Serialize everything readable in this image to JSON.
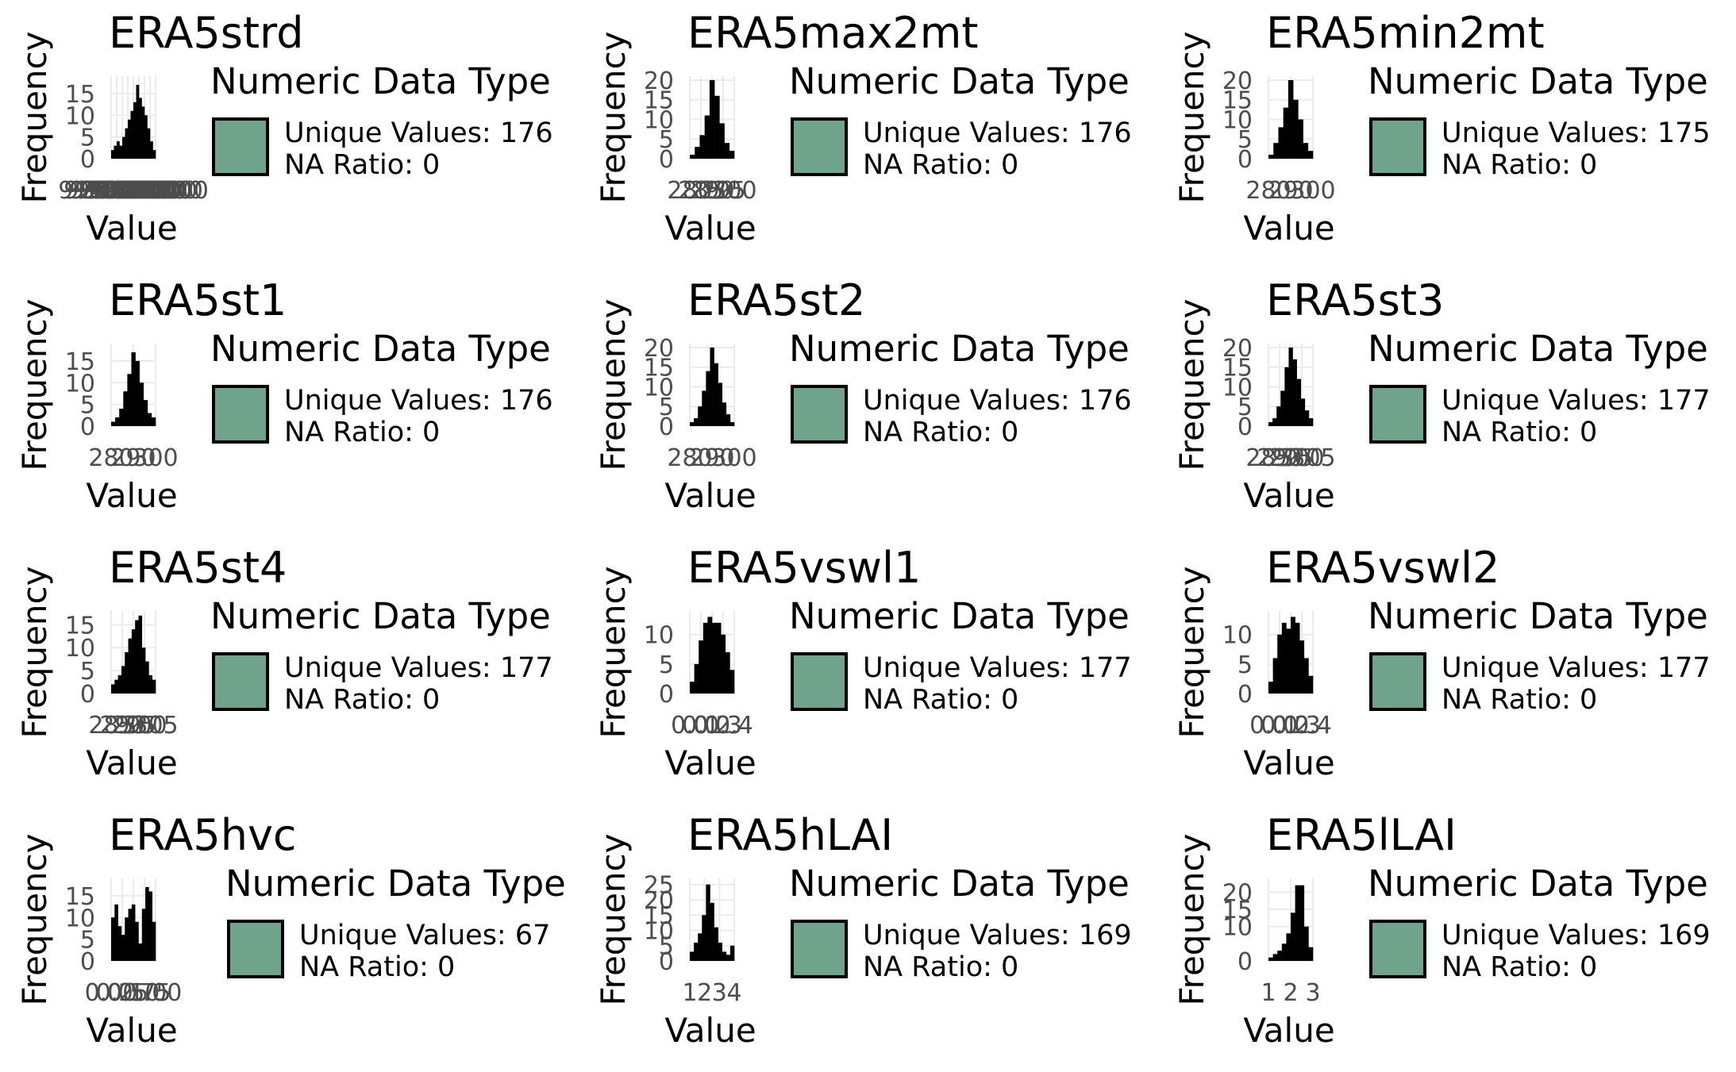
{
  "legend": {
    "title": "Numeric Data Type",
    "unique_prefix": "Unique Values: ",
    "na_prefix": "NA Ratio: "
  },
  "axis": {
    "xlabel": "Value",
    "ylabel": "Frequency"
  },
  "colors": {
    "legend_fill": "#6fa38b",
    "bars": "#000000",
    "grid": "#ebebeb",
    "tick_text": "#4d4d4d"
  },
  "chart_data": [
    {
      "type": "bar",
      "title": "ERA5strd",
      "unique_values": 176,
      "na_ratio": 0,
      "yticks": [
        "0",
        "5",
        "10",
        "15"
      ],
      "ylim": [
        0,
        19
      ],
      "xticks": [
        "9100000",
        "9200000",
        "9300000",
        "9400000",
        "9500000",
        "9600000",
        "9700000",
        "9800000",
        "9900000"
      ],
      "values": [
        2,
        3,
        4,
        3,
        5,
        7,
        9,
        11,
        13,
        17,
        14,
        12,
        10,
        7,
        4,
        2
      ]
    },
    {
      "type": "bar",
      "title": "ERA5max2mt",
      "unique_values": 176,
      "na_ratio": 0,
      "yticks": [
        "0",
        "5",
        "10",
        "15",
        "20"
      ],
      "ylim": [
        0,
        21
      ],
      "xticks": [
        "280",
        "285",
        "290",
        "295",
        "300"
      ],
      "values": [
        1,
        3,
        6,
        11,
        20,
        16,
        9,
        4,
        2
      ]
    },
    {
      "type": "bar",
      "title": "ERA5min2mt",
      "unique_values": 175,
      "na_ratio": 0,
      "yticks": [
        "0",
        "5",
        "10",
        "15",
        "20"
      ],
      "ylim": [
        0,
        21
      ],
      "xticks": [
        "280",
        "290",
        "300"
      ],
      "values": [
        1,
        4,
        8,
        13,
        20,
        15,
        10,
        4,
        2
      ]
    },
    {
      "type": "bar",
      "title": "ERA5st1",
      "unique_values": 176,
      "na_ratio": 0,
      "yticks": [
        "0",
        "5",
        "10",
        "15"
      ],
      "ylim": [
        0,
        19
      ],
      "xticks": [
        "280",
        "290",
        "300"
      ],
      "values": [
        1,
        2,
        4,
        8,
        12,
        17,
        15,
        10,
        6,
        3,
        2
      ]
    },
    {
      "type": "bar",
      "title": "ERA5st2",
      "unique_values": 176,
      "na_ratio": 0,
      "yticks": [
        "0",
        "5",
        "10",
        "15",
        "20"
      ],
      "ylim": [
        0,
        21
      ],
      "xticks": [
        "280",
        "290",
        "300"
      ],
      "values": [
        1,
        2,
        5,
        9,
        14,
        20,
        16,
        11,
        6,
        3,
        1
      ]
    },
    {
      "type": "bar",
      "title": "ERA5st3",
      "unique_values": 177,
      "na_ratio": 0,
      "yticks": [
        "0",
        "5",
        "10",
        "15",
        "20"
      ],
      "ylim": [
        0,
        21
      ],
      "xticks": [
        "285",
        "290",
        "295",
        "300",
        "305"
      ],
      "values": [
        1,
        2,
        5,
        9,
        15,
        20,
        17,
        12,
        7,
        4,
        2
      ]
    },
    {
      "type": "bar",
      "title": "ERA5st4",
      "unique_values": 177,
      "na_ratio": 0,
      "yticks": [
        "0",
        "5",
        "10",
        "15"
      ],
      "ylim": [
        0,
        18
      ],
      "xticks": [
        "285",
        "290",
        "295",
        "300",
        "305"
      ],
      "values": [
        2,
        3,
        4,
        6,
        9,
        12,
        14,
        16,
        17,
        10,
        7,
        4,
        3
      ]
    },
    {
      "type": "bar",
      "title": "ERA5vswl1",
      "unique_values": 177,
      "na_ratio": 0,
      "yticks": [
        "0",
        "5",
        "10"
      ],
      "ylim": [
        0,
        14
      ],
      "xticks": [
        "0.0",
        "0.1",
        "0.2",
        "0.3",
        "0.4"
      ],
      "values": [
        2,
        5,
        9,
        12,
        13,
        12,
        12,
        10,
        7,
        4
      ]
    },
    {
      "type": "bar",
      "title": "ERA5vswl2",
      "unique_values": 177,
      "na_ratio": 0,
      "yticks": [
        "0",
        "5",
        "10"
      ],
      "ylim": [
        0,
        14
      ],
      "xticks": [
        "0.0",
        "0.1",
        "0.2",
        "0.3",
        "0.4"
      ],
      "values": [
        2,
        6,
        10,
        12,
        11,
        13,
        12,
        9,
        6,
        3
      ]
    },
    {
      "type": "bar",
      "title": "ERA5hvc",
      "unique_values": 67,
      "na_ratio": 0,
      "yticks": [
        "0",
        "5",
        "10",
        "15"
      ],
      "ylim": [
        0,
        19
      ],
      "xticks": [
        "0.00",
        "0.25",
        "0.50",
        "0.75",
        "1.00"
      ],
      "values": [
        10,
        13,
        8,
        6,
        10,
        12,
        13,
        9,
        4,
        12,
        17,
        16,
        9
      ]
    },
    {
      "type": "bar",
      "title": "ERA5hLAI",
      "unique_values": 169,
      "na_ratio": 0,
      "yticks": [
        "0",
        "5",
        "10",
        "15",
        "20",
        "25"
      ],
      "ylim": [
        0,
        27
      ],
      "xticks": [
        "1",
        "2",
        "3",
        "4"
      ],
      "values": [
        3,
        6,
        9,
        15,
        25,
        19,
        11,
        6,
        3,
        2,
        5
      ]
    },
    {
      "type": "bar",
      "title": "ERA5lLAI",
      "unique_values": 169,
      "na_ratio": 0,
      "yticks": [
        "0",
        "10",
        "15",
        "20"
      ],
      "ylim": [
        0,
        24
      ],
      "xticks": [
        "1",
        "2",
        "3"
      ],
      "values": [
        1,
        2,
        3,
        5,
        8,
        14,
        22,
        22,
        10,
        4
      ]
    }
  ]
}
